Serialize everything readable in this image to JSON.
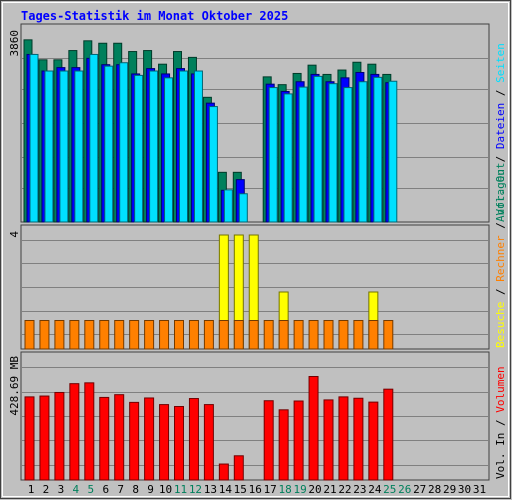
{
  "chart_data": [
    {
      "type": "bar",
      "title": "Tages-Statistik im Monat Oktober 2025",
      "y_tick_label": "3860",
      "ymax": 3860,
      "categories": [
        "1",
        "2",
        "3",
        "4",
        "5",
        "6",
        "7",
        "8",
        "9",
        "10",
        "11",
        "12",
        "13",
        "14",
        "15",
        "16",
        "17",
        "18",
        "19",
        "20",
        "21",
        "22",
        "23",
        "24",
        "25",
        "26",
        "27",
        "28",
        "29",
        "30",
        "31"
      ],
      "weekend_days": [
        "4",
        "5",
        "11",
        "12",
        "18",
        "19",
        "25",
        "26"
      ],
      "right_labels": [
        "Anfragen",
        "Dateien",
        "Seiten"
      ],
      "right_label_separator": "/",
      "series": [
        {
          "name": "Anfragen",
          "color": "#00805c",
          "values": [
            3740,
            3330,
            3330,
            3520,
            3720,
            3670,
            3670,
            3500,
            3520,
            3240,
            3500,
            3380,
            2560,
            1020,
            1020,
            0,
            2980,
            2820,
            3050,
            3220,
            3030,
            3120,
            3280,
            3240,
            3030,
            0,
            0,
            0,
            0,
            0,
            0
          ]
        },
        {
          "name": "Dateien",
          "color": "#0000ff",
          "values": [
            3440,
            3100,
            3170,
            3170,
            3360,
            3230,
            3230,
            3040,
            3150,
            3040,
            3150,
            3040,
            2440,
            650,
            870,
            0,
            2830,
            2680,
            2880,
            3030,
            2880,
            2960,
            3070,
            3030,
            2860,
            0,
            0,
            0,
            0,
            0,
            0
          ]
        },
        {
          "name": "Seiten",
          "color": "#00e0ff",
          "values": [
            3440,
            3100,
            3100,
            3100,
            3440,
            3200,
            3270,
            3010,
            3100,
            2960,
            3100,
            3100,
            2370,
            660,
            580,
            0,
            2760,
            2630,
            2770,
            2990,
            2840,
            2760,
            2880,
            2970,
            2890,
            0,
            0,
            0,
            0,
            0,
            0
          ]
        }
      ]
    },
    {
      "type": "bar",
      "y_tick_label": "4",
      "ymax": 4,
      "right_labels": [
        "Besuche",
        "Rechner",
        "Vol. Out"
      ],
      "right_label_separator": "/",
      "series": [
        {
          "name": "Besuche",
          "color": "#ffff00",
          "values": [
            0,
            0,
            0,
            0,
            0,
            0,
            0,
            0,
            0,
            0,
            0,
            0,
            0,
            4,
            4,
            4,
            0,
            2,
            0,
            0,
            0,
            0,
            0,
            2,
            0,
            0,
            0,
            0,
            0,
            0,
            0
          ]
        },
        {
          "name": "Rechner",
          "color": "#ff8000",
          "values": [
            1,
            1,
            1,
            1,
            1,
            1,
            1,
            1,
            1,
            1,
            1,
            1,
            1,
            1,
            1,
            1,
            1,
            1,
            1,
            1,
            1,
            1,
            1,
            1,
            1,
            0,
            0,
            0,
            0,
            0,
            0
          ]
        },
        {
          "name": "Vol. Out",
          "color": "#00805c",
          "values": [
            0,
            0,
            0,
            0,
            0,
            0,
            0,
            0,
            0,
            0,
            0,
            0,
            0,
            0,
            0,
            0,
            0,
            0,
            0,
            0,
            0,
            0,
            0,
            0,
            0,
            0,
            0,
            0,
            0,
            0,
            0
          ]
        }
      ]
    },
    {
      "type": "bar",
      "y_tick_label": "428.69 MB",
      "ymax": 428.69,
      "unit": "MB",
      "right_labels": [
        "Vol. In",
        "Volumen"
      ],
      "right_label_separator": "/",
      "series": [
        {
          "name": "Volumen",
          "color": "#ff0000",
          "values": [
            302,
            305,
            318,
            350,
            353,
            300,
            310,
            282,
            298,
            274,
            267,
            296,
            274,
            58,
            88,
            0,
            288,
            255,
            287,
            376,
            291,
            302,
            297,
            283,
            330,
            0,
            0,
            0,
            0,
            0,
            0
          ]
        }
      ]
    }
  ],
  "colors": {
    "background": "#c0c0c0",
    "plot_bg": "#c0c0c0",
    "frame_light": "#ffffff",
    "frame_dark": "#404040",
    "gridline": "#808080",
    "title_color": "#0000ff",
    "tick_color": "#000000",
    "weekend_tick_color": "#00805c",
    "separator_color": "#000000"
  }
}
